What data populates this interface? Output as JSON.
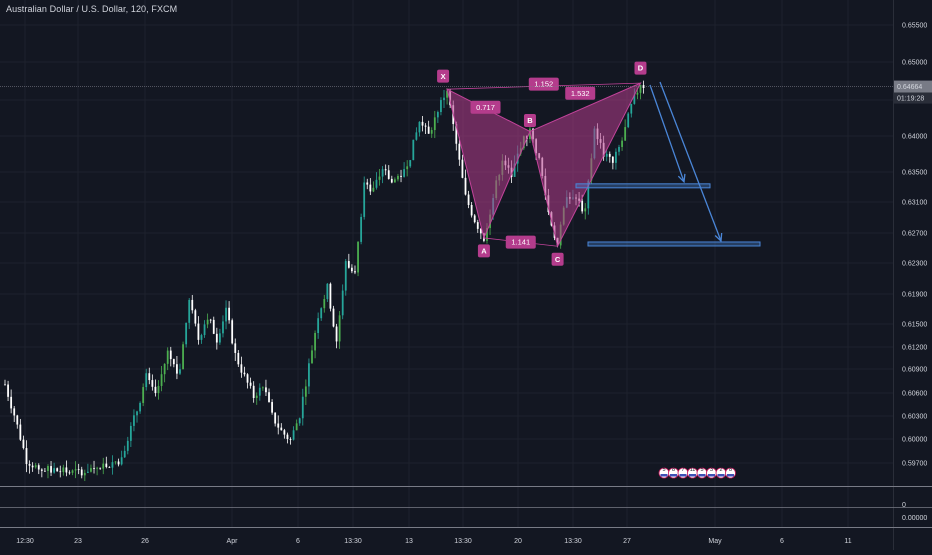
{
  "title": "Australian Dollar / U.S. Dollar, 120, FXCM",
  "colors": {
    "background": "#131722",
    "up": "#26a69a",
    "upBright": "#4caf50",
    "down": "#ffffff",
    "grid": "#1e222d",
    "axisText": "#d1d4dc",
    "pattern": "#b43c8c",
    "patternStroke": "#c2439a",
    "projection": "#4a86d8",
    "priceTag": "#787b86",
    "crosshair": "#787b86"
  },
  "price_axis": {
    "ticks": [
      "0.65500",
      "0.65000",
      "0.64500",
      "0.64000",
      "0.63500",
      "0.63100",
      "0.62700",
      "0.62300",
      "0.61900",
      "0.61500",
      "0.61200",
      "0.60900",
      "0.60600",
      "0.60300",
      "0.60000",
      "0.59700"
    ],
    "current_price": "0.64664",
    "countdown": "01:19:28"
  },
  "indicator_axis": {
    "ticks": [
      "0",
      "0.00000"
    ]
  },
  "time_axis": {
    "ticks": [
      "12:30",
      "23",
      "26",
      "Apr",
      "6",
      "13:30",
      "13",
      "13:30",
      "20",
      "13:30",
      "27",
      "May",
      "6",
      "11"
    ]
  },
  "pattern": {
    "points": [
      {
        "label": "X",
        "price": 0.6463
      },
      {
        "label": "A",
        "price": 0.6266
      },
      {
        "label": "B",
        "price": 0.6407
      },
      {
        "label": "C",
        "price": 0.6255
      },
      {
        "label": "D",
        "price": 0.6471
      }
    ],
    "ratios": {
      "xb": "0.717",
      "ac": "1.141",
      "bd": "1.532",
      "xd": "1.152"
    }
  },
  "targets": [
    {
      "name": "target-1",
      "price": 0.6335
    },
    {
      "name": "target-2",
      "price": 0.6258
    }
  ],
  "events_strip": {
    "labels": [
      "5",
      "8",
      "7",
      "11",
      "5",
      "3",
      "2",
      "8"
    ]
  },
  "chart_data": {
    "type": "candlestick",
    "title": "Australian Dollar / U.S. Dollar, 120, FXCM",
    "xlabel": "",
    "ylabel": "",
    "ylim": [
      0.5951,
      0.6574
    ],
    "grid": true,
    "last_price": 0.64664,
    "harmonic_pattern": {
      "X": 0.6463,
      "A": 0.6266,
      "B": 0.6407,
      "C": 0.6255,
      "D": 0.6471,
      "XB": 0.717,
      "AC": 1.141,
      "BD": 1.532,
      "XD": 1.152
    },
    "price_path": [
      {
        "t": 0,
        "p": 0.6072
      },
      {
        "t": 0.6,
        "p": 0.6032
      },
      {
        "t": 1.4,
        "p": 0.5972
      },
      {
        "t": 2.2,
        "p": 0.596
      },
      {
        "t": 3.2,
        "p": 0.5958
      },
      {
        "t": 4.5,
        "p": 0.5955
      },
      {
        "t": 6.0,
        "p": 0.5962
      },
      {
        "t": 7.5,
        "p": 0.5972
      },
      {
        "t": 8.6,
        "p": 0.6038
      },
      {
        "t": 9.2,
        "p": 0.6082
      },
      {
        "t": 9.8,
        "p": 0.6055
      },
      {
        "t": 10.6,
        "p": 0.6115
      },
      {
        "t": 11.3,
        "p": 0.6082
      },
      {
        "t": 12.0,
        "p": 0.6182
      },
      {
        "t": 12.6,
        "p": 0.6132
      },
      {
        "t": 13.2,
        "p": 0.6163
      },
      {
        "t": 13.8,
        "p": 0.6132
      },
      {
        "t": 14.4,
        "p": 0.6172
      },
      {
        "t": 15.0,
        "p": 0.6111
      },
      {
        "t": 15.6,
        "p": 0.6082
      },
      {
        "t": 16.2,
        "p": 0.6056
      },
      {
        "t": 16.8,
        "p": 0.6073
      },
      {
        "t": 17.4,
        "p": 0.603
      },
      {
        "t": 18.0,
        "p": 0.601
      },
      {
        "t": 18.6,
        "p": 0.5998
      },
      {
        "t": 19.2,
        "p": 0.6032
      },
      {
        "t": 19.8,
        "p": 0.6097
      },
      {
        "t": 20.4,
        "p": 0.6164
      },
      {
        "t": 21.0,
        "p": 0.62
      },
      {
        "t": 21.6,
        "p": 0.613
      },
      {
        "t": 22.2,
        "p": 0.6232
      },
      {
        "t": 22.8,
        "p": 0.6217
      },
      {
        "t": 23.4,
        "p": 0.634
      },
      {
        "t": 24.0,
        "p": 0.633
      },
      {
        "t": 24.6,
        "p": 0.6358
      },
      {
        "t": 25.2,
        "p": 0.634
      },
      {
        "t": 25.8,
        "p": 0.635
      },
      {
        "t": 26.4,
        "p": 0.6375
      },
      {
        "t": 27.0,
        "p": 0.642
      },
      {
        "t": 27.6,
        "p": 0.6402
      },
      {
        "t": 28.2,
        "p": 0.6436
      },
      {
        "t": 28.8,
        "p": 0.6463
      },
      {
        "t": 29.4,
        "p": 0.639
      },
      {
        "t": 30.0,
        "p": 0.632
      },
      {
        "t": 30.6,
        "p": 0.629
      },
      {
        "t": 31.2,
        "p": 0.6266
      },
      {
        "t": 31.8,
        "p": 0.632
      },
      {
        "t": 32.4,
        "p": 0.6372
      },
      {
        "t": 33.0,
        "p": 0.6348
      },
      {
        "t": 33.6,
        "p": 0.639
      },
      {
        "t": 34.2,
        "p": 0.6407
      },
      {
        "t": 34.8,
        "p": 0.637
      },
      {
        "t": 35.4,
        "p": 0.63
      },
      {
        "t": 36.0,
        "p": 0.6255
      },
      {
        "t": 36.6,
        "p": 0.6325
      },
      {
        "t": 37.2,
        "p": 0.6318
      },
      {
        "t": 37.8,
        "p": 0.63
      },
      {
        "t": 38.4,
        "p": 0.641
      },
      {
        "t": 39.0,
        "p": 0.6378
      },
      {
        "t": 39.6,
        "p": 0.6365
      },
      {
        "t": 40.2,
        "p": 0.6395
      },
      {
        "t": 40.8,
        "p": 0.644
      },
      {
        "t": 41.4,
        "p": 0.6471
      },
      {
        "t": 41.7,
        "p": 0.6466
      }
    ]
  }
}
